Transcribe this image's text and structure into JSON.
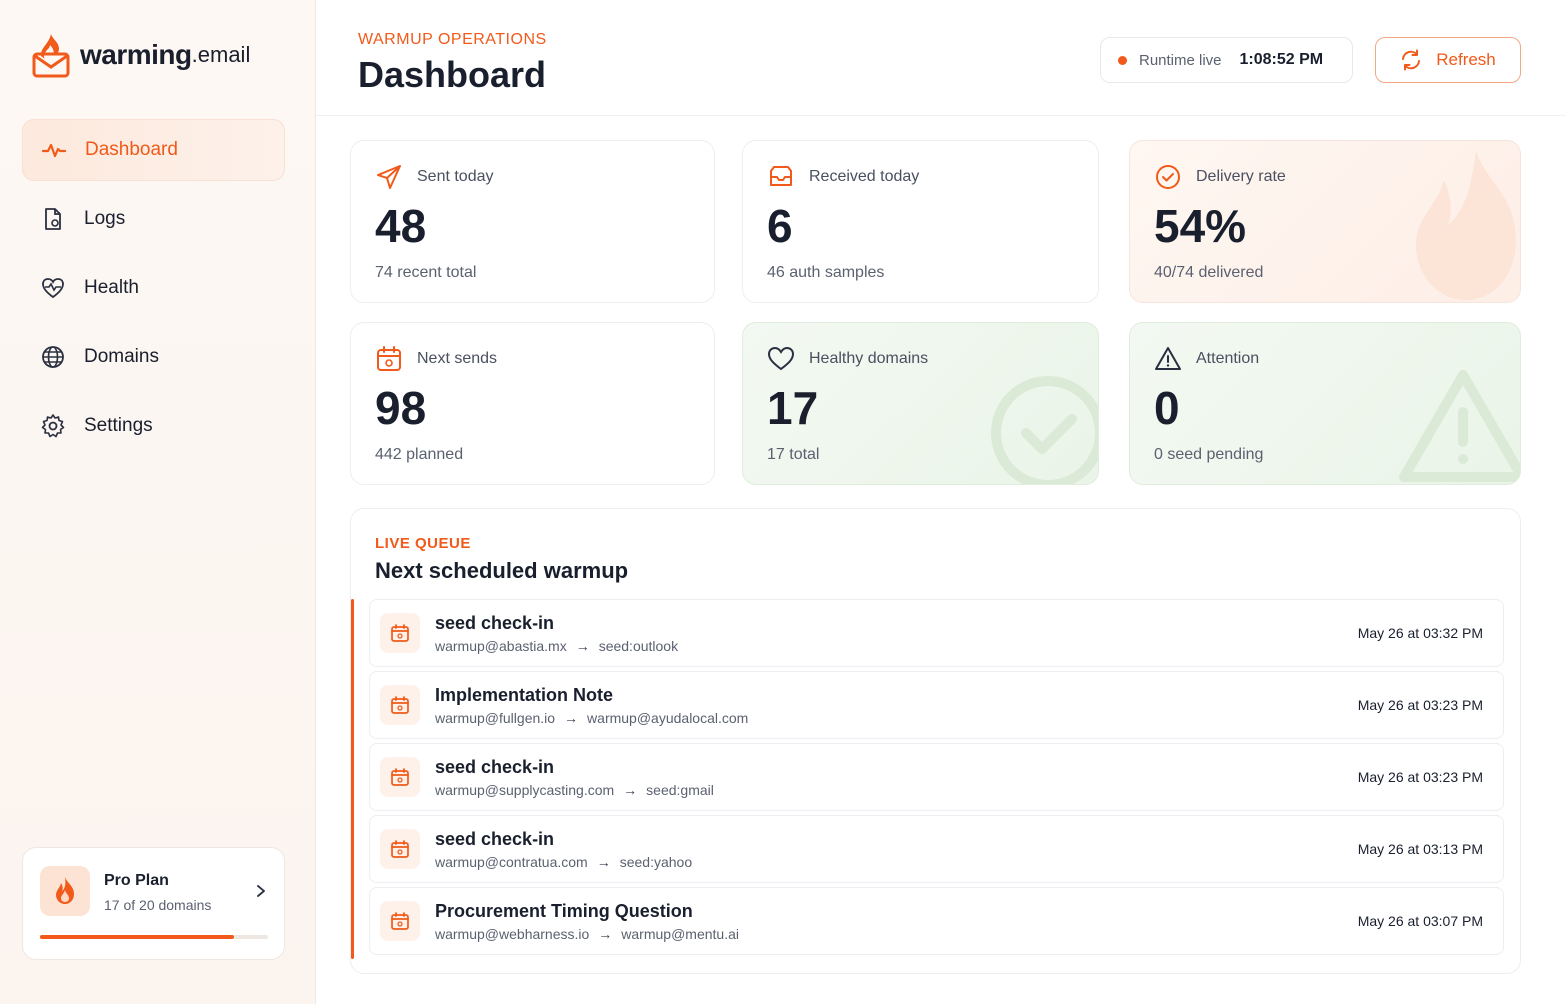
{
  "brand": {
    "name": "warming",
    "tld": ".email"
  },
  "nav": [
    {
      "label": "Dashboard",
      "icon": "activity-icon",
      "active": true
    },
    {
      "label": "Logs",
      "icon": "file-icon",
      "active": false
    },
    {
      "label": "Health",
      "icon": "heart-pulse-icon",
      "active": false
    },
    {
      "label": "Domains",
      "icon": "globe-icon",
      "active": false
    },
    {
      "label": "Settings",
      "icon": "gear-icon",
      "active": false
    }
  ],
  "plan": {
    "name": "Pro Plan",
    "usage": "17 of 20 domains",
    "progress": 0.85
  },
  "header": {
    "eyebrow": "WARMUP OPERATIONS",
    "title": "Dashboard",
    "runtime_label": "Runtime live",
    "runtime_time": "1:08:52 PM",
    "refresh_label": "Refresh"
  },
  "stats": {
    "sent": {
      "label": "Sent today",
      "value": "48",
      "sub": "74 recent total"
    },
    "received": {
      "label": "Received today",
      "value": "6",
      "sub": "46 auth samples"
    },
    "delivery": {
      "label": "Delivery rate",
      "value": "54%",
      "sub": "40/74 delivered"
    },
    "next": {
      "label": "Next sends",
      "value": "98",
      "sub": "442 planned"
    },
    "healthy": {
      "label": "Healthy domains",
      "value": "17",
      "sub": "17 total"
    },
    "attention": {
      "label": "Attention",
      "value": "0",
      "sub": "0 seed pending"
    }
  },
  "queue": {
    "eyebrow": "LIVE QUEUE",
    "title": "Next scheduled warmup",
    "items": [
      {
        "title": "seed check-in",
        "from": "warmup@abastia.mx",
        "to": "seed:outlook",
        "time": "May 26 at 03:32 PM"
      },
      {
        "title": "Implementation Note",
        "from": "warmup@fullgen.io",
        "to": "warmup@ayudalocal.com",
        "time": "May 26 at 03:23 PM"
      },
      {
        "title": "seed check-in",
        "from": "warmup@supplycasting.com",
        "to": "seed:gmail",
        "time": "May 26 at 03:23 PM"
      },
      {
        "title": "seed check-in",
        "from": "warmup@contratua.com",
        "to": "seed:yahoo",
        "time": "May 26 at 03:13 PM"
      },
      {
        "title": "Procurement Timing Question",
        "from": "warmup@webharness.io",
        "to": "warmup@mentu.ai",
        "time": "May 26 at 03:07 PM"
      }
    ]
  },
  "colors": {
    "accent": "#f15a1a",
    "text": "#1a1f2e",
    "muted": "#5b6170"
  }
}
